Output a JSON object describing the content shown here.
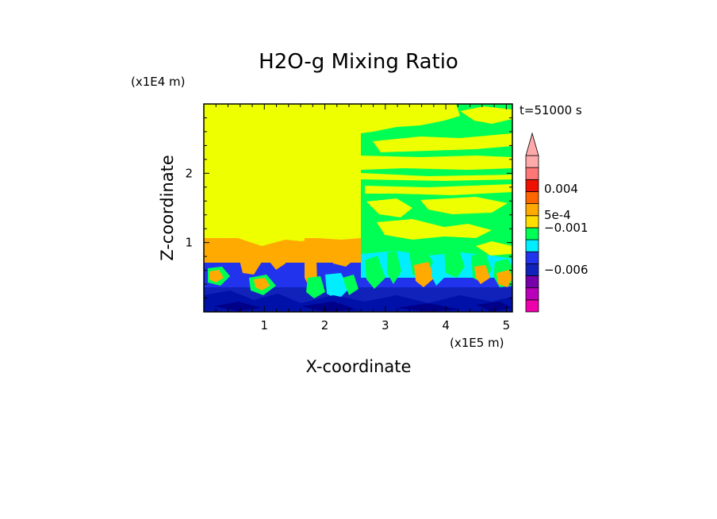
{
  "chart_data": {
    "type": "heatmap",
    "title": "H2O-g Mixing Ratio",
    "xlabel": "X-coordinate",
    "ylabel": "Z-coordinate",
    "x_unit": "(x1E5 m)",
    "y_unit": "(x1E4 m)",
    "time_label": "t=51000 s",
    "xlim": [
      0,
      5.1
    ],
    "ylim": [
      0,
      3.0
    ],
    "x_ticks": [
      1,
      2,
      3,
      4,
      5
    ],
    "y_ticks": [
      1,
      2
    ],
    "colorbar": {
      "labels": [
        {
          "text": "0.004",
          "value": 0.004
        },
        {
          "text": "5e-4",
          "value": 0.0005
        },
        {
          "text": "−0.001",
          "value": -0.001
        },
        {
          "text": "−0.006",
          "value": -0.006
        }
      ],
      "colors": [
        "#ee00aa",
        "#bb00bb",
        "#7700aa",
        "#1122bb",
        "#2233ee",
        "#00eeff",
        "#00ff55",
        "#ffdd00",
        "#ffaa00",
        "#ff6600",
        "#ee1100",
        "#ff7777",
        "#ffaaaa"
      ],
      "extend_top": true
    },
    "regions": [
      {
        "name": "upper-left-uniform",
        "x": [
          0,
          2.6
        ],
        "z": [
          0.8,
          3.0
        ],
        "color": "#eeff00"
      },
      {
        "name": "upper-right-banded",
        "x": [
          2.6,
          5.1
        ],
        "z": [
          0.8,
          3.0
        ],
        "color": "#00ff55"
      },
      {
        "name": "lower-turbulent-layer",
        "x": [
          0,
          5.1
        ],
        "z": [
          0,
          0.7
        ],
        "color": "#1122bb"
      }
    ]
  }
}
